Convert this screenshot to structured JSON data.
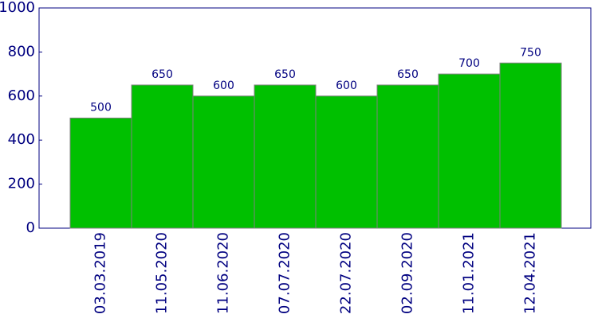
{
  "chart_data": {
    "type": "bar",
    "categories": [
      "03.03.2019",
      "11.05.2020",
      "11.06.2020",
      "07.07.2020",
      "22.07.2020",
      "02.09.2020",
      "11.01.2021",
      "12.04.2021"
    ],
    "values": [
      500,
      650,
      600,
      650,
      600,
      650,
      700,
      750
    ],
    "color": "#00c000",
    "ylim": [
      0,
      1000
    ],
    "yticks": [
      0,
      200,
      400,
      600,
      800,
      1000
    ],
    "grid": false
  }
}
